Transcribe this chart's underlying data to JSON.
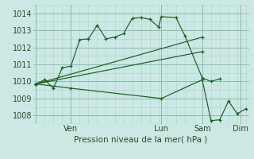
{
  "background_color": "#cce8e4",
  "grid_color_minor": "#aad4ce",
  "grid_color_major": "#88bbb4",
  "line_color": "#1a5e20",
  "ylim": [
    1007.5,
    1014.5
  ],
  "ylabel_ticks": [
    1008,
    1009,
    1010,
    1011,
    1012,
    1013,
    1014
  ],
  "xlabel": "Pression niveau de la mer( hPa )",
  "xlim": [
    -1,
    73
  ],
  "day_x": [
    0,
    12,
    43,
    57,
    70
  ],
  "day_labels": [
    "",
    "Ven",
    "Lun",
    "Sam",
    "Dim"
  ],
  "series": [
    {
      "x": [
        0,
        3,
        6,
        9,
        12,
        15,
        18,
        21,
        24,
        27,
        30,
        33,
        36,
        39,
        42,
        43,
        48,
        51,
        57,
        60,
        63
      ],
      "y": [
        1009.85,
        1010.1,
        1009.6,
        1010.8,
        1010.9,
        1012.45,
        1012.5,
        1013.3,
        1012.5,
        1012.6,
        1012.8,
        1013.7,
        1013.75,
        1013.65,
        1013.2,
        1013.8,
        1013.75,
        1012.7,
        1010.2,
        1010.0,
        1010.15
      ]
    },
    {
      "x": [
        0,
        57
      ],
      "y": [
        1009.85,
        1012.6
      ]
    },
    {
      "x": [
        0,
        57
      ],
      "y": [
        1009.85,
        1011.75
      ]
    },
    {
      "x": [
        0,
        12,
        43,
        57,
        60,
        63,
        66,
        69,
        72
      ],
      "y": [
        1009.85,
        1009.6,
        1009.0,
        1010.1,
        1007.7,
        1007.75,
        1008.85,
        1008.1,
        1008.4
      ]
    }
  ]
}
